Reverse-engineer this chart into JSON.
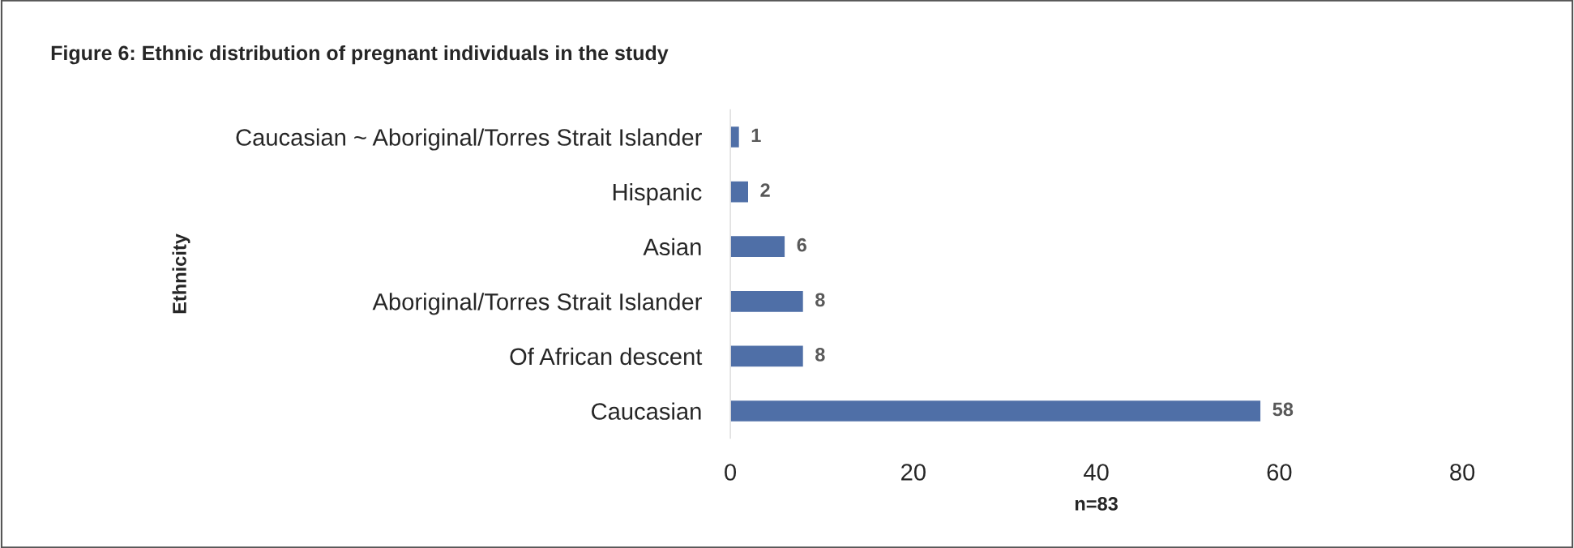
{
  "chart_data": {
    "type": "bar",
    "orientation": "horizontal",
    "title": "Figure 6: Ethnic distribution of pregnant individuals in the study",
    "xlabel": "n=83",
    "ylabel": "Ethnicity",
    "categories": [
      "Caucasian ~ Aboriginal/Torres Strait Islander",
      "Hispanic",
      "Asian",
      "Aboriginal/Torres Strait Islander",
      "Of African descent",
      "Caucasian"
    ],
    "values": [
      1,
      2,
      6,
      8,
      8,
      58
    ],
    "color": "#4f6fa7",
    "xlim": [
      0,
      80
    ],
    "xticks": [
      0,
      20,
      40,
      60,
      80
    ],
    "grid": false,
    "data_labels": true
  }
}
